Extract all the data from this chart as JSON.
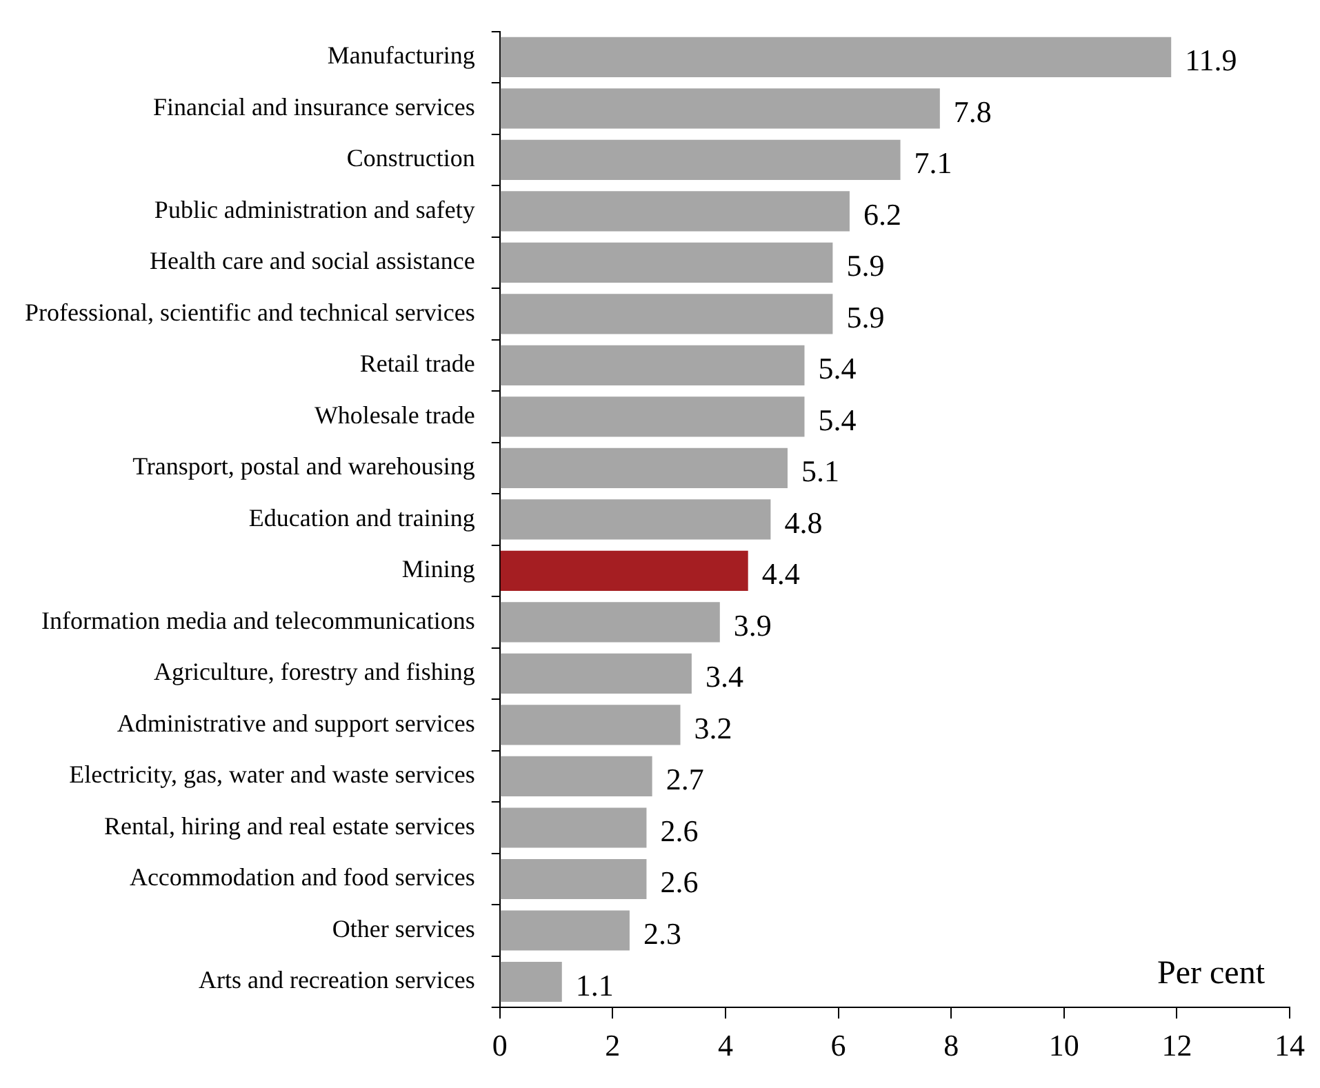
{
  "chart_data": {
    "type": "bar",
    "orientation": "horizontal",
    "xlabel": "Per cent",
    "categories": [
      "Manufacturing",
      "Financial and insurance services",
      "Construction",
      "Public administration and safety",
      "Health care and social assistance",
      "Professional, scientific and technical services",
      "Retail trade",
      "Wholesale trade",
      "Transport, postal and warehousing",
      "Education and training",
      "Mining",
      "Information media and telecommunications",
      "Agriculture, forestry and fishing",
      "Administrative and support services",
      "Electricity, gas, water and waste services",
      "Rental, hiring and real estate services",
      "Accommodation and food services",
      "Other services",
      "Arts and recreation services"
    ],
    "values": [
      11.9,
      7.8,
      7.1,
      6.2,
      5.9,
      5.9,
      5.4,
      5.4,
      5.1,
      4.8,
      4.4,
      3.9,
      3.4,
      3.2,
      2.7,
      2.6,
      2.6,
      2.3,
      1.1
    ],
    "colors": [
      "#a6a6a6",
      "#a6a6a6",
      "#a6a6a6",
      "#a6a6a6",
      "#a6a6a6",
      "#a6a6a6",
      "#a6a6a6",
      "#a6a6a6",
      "#a6a6a6",
      "#a6a6a6",
      "#a51e22",
      "#a6a6a6",
      "#a6a6a6",
      "#a6a6a6",
      "#a6a6a6",
      "#a6a6a6",
      "#a6a6a6",
      "#a6a6a6",
      "#a6a6a6"
    ],
    "xlim": [
      0,
      14
    ],
    "xticks": [
      0,
      2,
      4,
      6,
      8,
      10,
      12,
      14
    ],
    "data_labels": true,
    "grid": false,
    "legend": false
  }
}
